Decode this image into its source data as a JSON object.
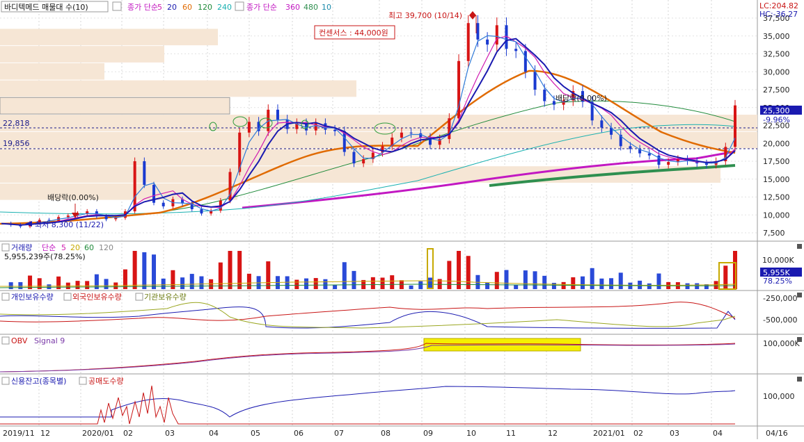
{
  "main": {
    "title": "바디텍메드 매물대 수(10)",
    "ma_price_label": "종가 단순",
    "ma_price_periods": [
      "5",
      "20",
      "60",
      "120",
      "240"
    ],
    "ma_price_colors": [
      "#d01cb0",
      "#1a1ab0",
      "#e06a00",
      "#1f8a3a",
      "#18b0b0"
    ],
    "ma_long_label": "종가 단순",
    "ma_long_periods": [
      "360",
      "480",
      "10"
    ],
    "ma_long_colors": [
      "#c218c2",
      "#2f8f4f",
      "#1a8aaa"
    ],
    "lc_label": "LC:204.82",
    "hc_label": "HC:-36.27",
    "high_label": "최고 39,700 (10/14)",
    "low_label": "최저 8,300 (11/22)",
    "consensus": "컨센서스 : 44,000원",
    "dividend1": "배당락(0.00%)",
    "dividend2": "배당락(0.00%)",
    "hline1": "22,818",
    "hline2": "19,856",
    "current_price": "25,300",
    "current_change": "-9.96%"
  },
  "volume": {
    "title": "거래량",
    "ma_label": "단순",
    "ma_periods": [
      "5",
      "20",
      "60",
      "120"
    ],
    "ma_colors": [
      "#d01cb0",
      "#c7a900",
      "#1f8a3a",
      "#888888"
    ],
    "info": "5,955,239주(78.25%)",
    "current": "5,955K",
    "current_pct": "78.25%"
  },
  "holdings": {
    "s1": "개인보유수량",
    "s2": "외국인보유수량",
    "s3": "기관보유수량",
    "s1_color": "#1a1ab0",
    "s2_color": "#c81414",
    "s3_color": "#9aa620"
  },
  "obv": {
    "s1": "OBV",
    "s2": "Signal 9"
  },
  "credit": {
    "s1": "신용잔고(종목별)",
    "s2": "공매도수량"
  },
  "chart_data": {
    "type": "line",
    "y_ticks": [
      "37,500",
      "35,000",
      "32,500",
      "30,000",
      "27,500",
      "25,000",
      "22,500",
      "20,000",
      "17,500",
      "15,000",
      "12,500",
      "10,000",
      "7,500"
    ],
    "ylim": [
      6500,
      40000
    ],
    "x_labels": [
      "2019/11",
      "12",
      "2020/01",
      "02",
      "03",
      "04",
      "05",
      "06",
      "07",
      "08",
      "09",
      "10",
      "11",
      "12",
      "2021/01",
      "02",
      "03",
      "04",
      "04/16"
    ],
    "series": [
      {
        "name": "종가",
        "values": [
          8800,
          8600,
          8400,
          8900,
          9300,
          9200,
          9700,
          9900,
          10200,
          10500,
          9800,
          9400,
          9600,
          10500,
          17500,
          14200,
          11700,
          11200,
          12200,
          11600,
          10800,
          10200,
          10600,
          12000,
          16000,
          21500,
          23000,
          21700,
          24700,
          23300,
          22000,
          22800,
          21800,
          22800,
          21900,
          21700,
          18800,
          17200,
          17800,
          18700,
          19600,
          20800,
          21500,
          21400,
          20800,
          19800,
          20600,
          23500,
          31500,
          36800,
          34500,
          33800,
          36500,
          33200,
          32900,
          30000,
          27500,
          25900,
          25400,
          26000,
          27300,
          25800,
          23200,
          22200,
          21200,
          19600,
          19200,
          18600,
          18300,
          17000,
          17400,
          17800,
          17500,
          17200,
          17000,
          17500,
          19500,
          25300
        ]
      },
      {
        "name": "매물대",
        "values": [
          36000,
          33600,
          31200,
          28800,
          26400,
          24000,
          21600,
          19200,
          16800,
          14400,
          12000,
          9600
        ]
      }
    ]
  }
}
